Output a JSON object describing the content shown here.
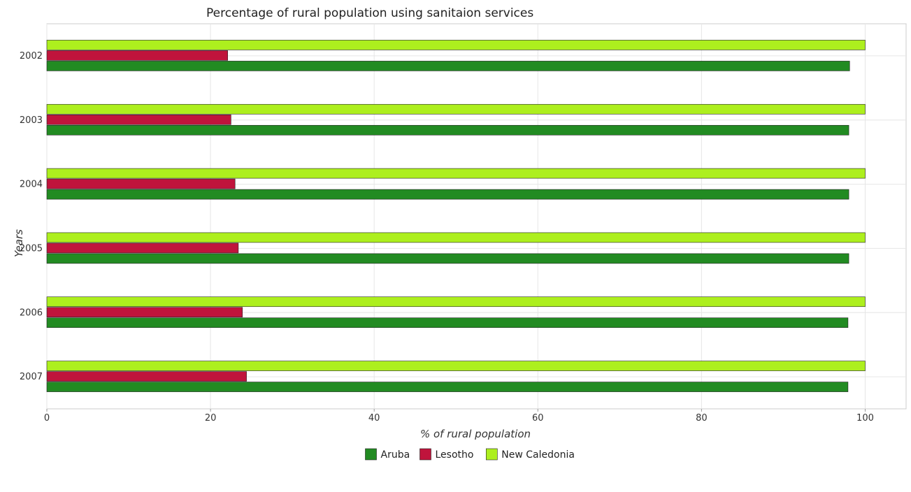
{
  "chart_data": {
    "type": "bar",
    "orientation": "horizontal",
    "title": "Percentage of rural population using sanitaion services",
    "xlabel": "% of rural population",
    "ylabel": "Years",
    "xlim": [
      0,
      105
    ],
    "xticks": [
      0,
      20,
      40,
      60,
      80,
      100
    ],
    "categories": [
      "2002",
      "2003",
      "2004",
      "2005",
      "2006",
      "2007"
    ],
    "series": [
      {
        "name": "Aruba",
        "color": "#228B22",
        "values": [
          98.1,
          98.0,
          98.0,
          98.0,
          97.9,
          97.9
        ]
      },
      {
        "name": "Lesotho",
        "color": "#C0143C",
        "values": [
          22.1,
          22.5,
          23.0,
          23.4,
          23.9,
          24.4
        ]
      },
      {
        "name": "New Caledonia",
        "color": "#ADEF1E",
        "values": [
          100,
          100,
          100,
          100,
          100,
          100
        ]
      }
    ],
    "grid": true,
    "legend_position": "bottom-center"
  }
}
